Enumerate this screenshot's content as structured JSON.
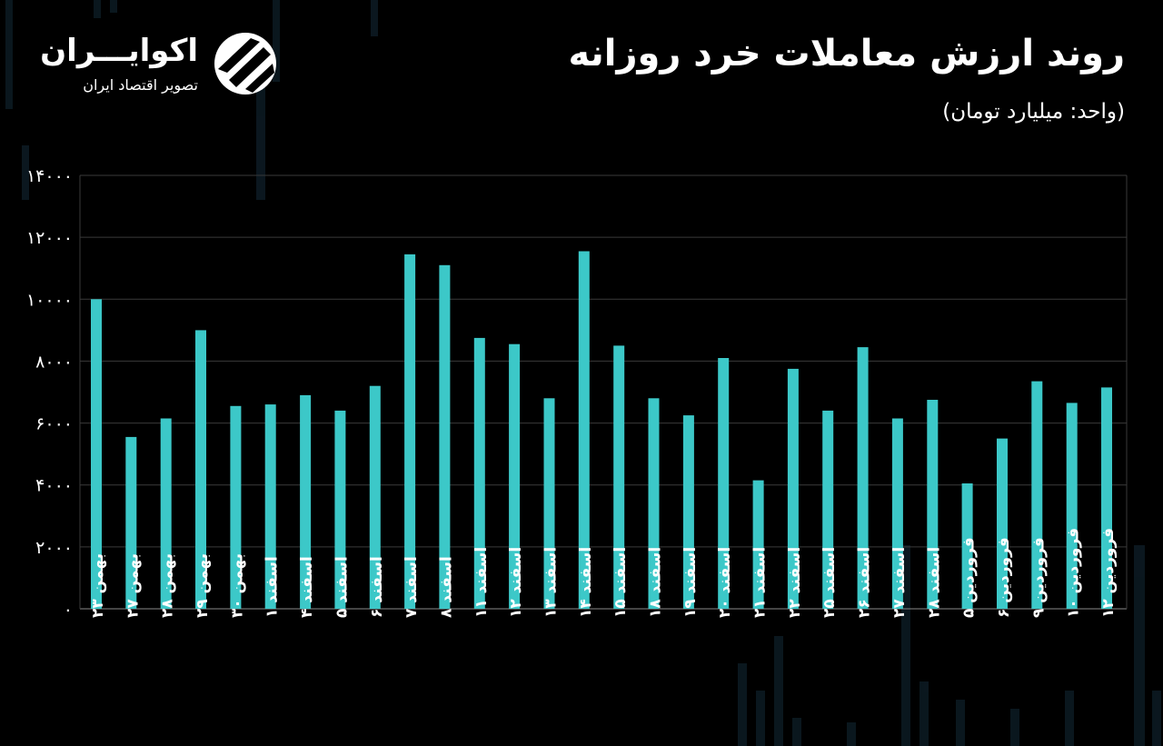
{
  "header": {
    "title": "روند ارزش معاملات خرد روزانه",
    "unit_label": "(واحد: میلیارد تومان)"
  },
  "logo": {
    "name": "اکوایـــران",
    "tagline": "تصویر اقتصاد ایران"
  },
  "colors": {
    "background": "#000000",
    "bar": "#3cc8c8",
    "grid": "#3a3a3a",
    "text": "#ffffff"
  },
  "chart_data": {
    "type": "bar",
    "title": "روند ارزش معاملات خرد روزانه",
    "ylabel": "",
    "xlabel": "",
    "ylim": [
      0,
      14000
    ],
    "yticks": [
      0,
      2000,
      4000,
      6000,
      8000,
      10000,
      12000,
      14000
    ],
    "ytick_labels": [
      "۰",
      "۲۰۰۰",
      "۴۰۰۰",
      "۶۰۰۰",
      "۸۰۰۰",
      "۱۰۰۰۰",
      "۱۲۰۰۰",
      "۱۴۰۰۰"
    ],
    "grid": true,
    "categories": [
      "بهمن ۲۳",
      "بهمن ۲۷",
      "بهمن ۲۸",
      "بهمن ۲۹",
      "بهمن ۳۰",
      "اسفند ۱",
      "اسفند ۴",
      "اسفند ۵",
      "اسفند ۶",
      "اسفند ۷",
      "اسفند ۸",
      "اسفند ۱۱",
      "اسفند ۱۲",
      "اسفند ۱۳",
      "اسفند ۱۴",
      "اسفند ۱۵",
      "اسفند ۱۸",
      "اسفند ۱۹",
      "اسفند ۲۰",
      "اسفند ۲۱",
      "اسفند ۲۲",
      "اسفند ۲۵",
      "اسفند ۲۶",
      "اسفند ۲۷",
      "اسفند ۲۸",
      "فروردین ۵",
      "فروردین ۶",
      "فروردین ۹",
      "فروردین ۱۰",
      "فروردین ۱۲"
    ],
    "values": [
      10000,
      5550,
      6150,
      9000,
      6550,
      6600,
      6900,
      6400,
      7200,
      11450,
      11100,
      8750,
      8550,
      6800,
      11550,
      8500,
      6800,
      6250,
      8100,
      4150,
      7750,
      6400,
      8450,
      6150,
      6750,
      4050,
      5500,
      7350,
      6650,
      7150
    ]
  }
}
